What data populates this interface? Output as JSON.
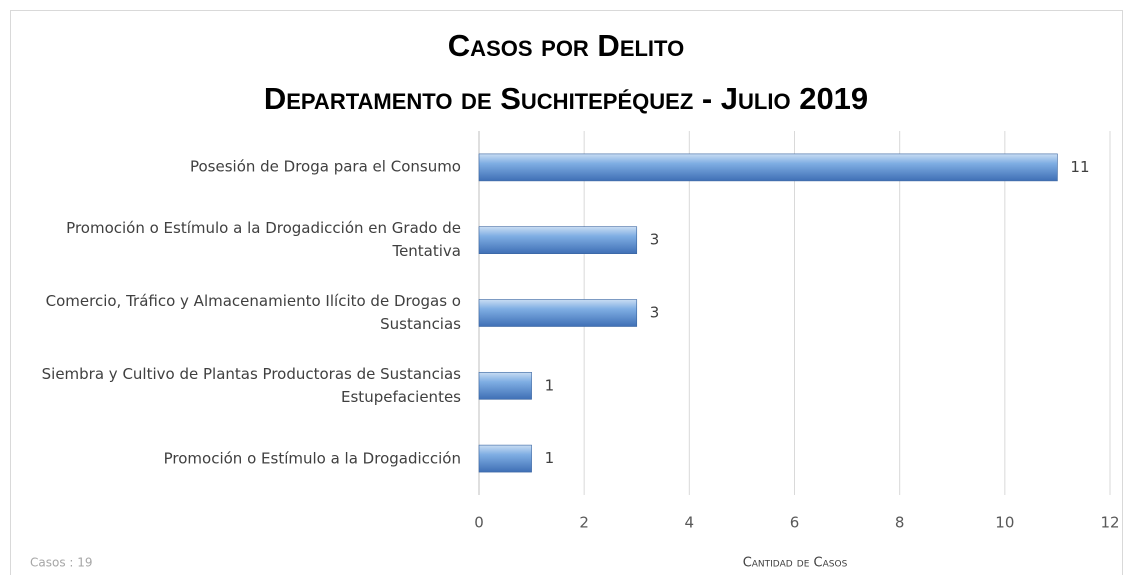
{
  "chart_data": {
    "type": "bar",
    "orientation": "horizontal",
    "title": "Casos por Delito",
    "subtitle": "Departamento de Suchitepéquez - Julio 2019",
    "categories": [
      "Posesión de Droga para el Consumo",
      "Promoción o Estímulo a la Drogadicción en Grado de Tentativa",
      "Comercio, Tráfico y Almacenamiento Ilícito de Drogas o Sustancias",
      "Siembra y Cultivo de Plantas Productoras de Sustancias Estupefacientes",
      "Promoción o Estímulo a la Drogadicción"
    ],
    "values": [
      11,
      3,
      3,
      1,
      1
    ],
    "color": "#5b9bd5",
    "xlim": [
      0,
      12
    ],
    "xticks": [
      0,
      2,
      4,
      6,
      8,
      10,
      12
    ],
    "grid": true,
    "xlabel": "Cantidad de Casos",
    "note": "Casos : 19"
  }
}
